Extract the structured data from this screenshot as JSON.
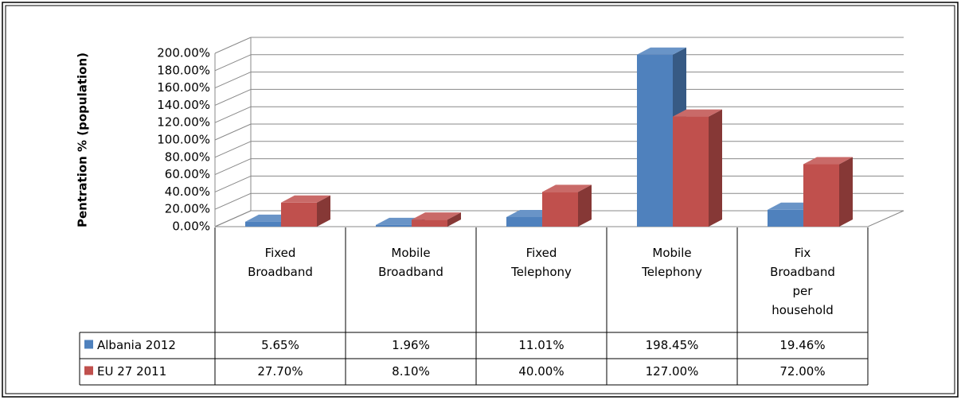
{
  "chart_data": {
    "type": "bar3d",
    "y_label": "Pentration % (population)",
    "categories": [
      "Fixed Broadband",
      "Mobile Broadband",
      "Fixed Telephony",
      "Mobile Telephony",
      "Fix Broadband per household"
    ],
    "series": [
      {
        "name": "Albania 2012",
        "color": "#4f81bd",
        "values": [
          5.65,
          1.96,
          11.01,
          198.45,
          19.46
        ],
        "value_labels": [
          "5.65%",
          "1.96%",
          "11.01%",
          "198.45%",
          "19.46%"
        ]
      },
      {
        "name": "EU 27 2011",
        "color": "#c0504d",
        "values": [
          27.7,
          8.1,
          40.0,
          127.0,
          72.0
        ],
        "value_labels": [
          "27.70%",
          "8.10%",
          "40.00%",
          "127.00%",
          "72.00%"
        ]
      }
    ],
    "ylim": [
      0,
      200
    ],
    "yticks": [
      {
        "value": 0,
        "label": "0.00%"
      },
      {
        "value": 20,
        "label": "20.00%"
      },
      {
        "value": 40,
        "label": "40.00%"
      },
      {
        "value": 60,
        "label": "60.00%"
      },
      {
        "value": 80,
        "label": "80.00%"
      },
      {
        "value": 100,
        "label": "100.00%"
      },
      {
        "value": 120,
        "label": "120.00%"
      },
      {
        "value": 140,
        "label": "140.00%"
      },
      {
        "value": 160,
        "label": "160.00%"
      },
      {
        "value": 180,
        "label": "180.00%"
      },
      {
        "value": 200,
        "label": "200.00%"
      }
    ],
    "grid": true
  }
}
